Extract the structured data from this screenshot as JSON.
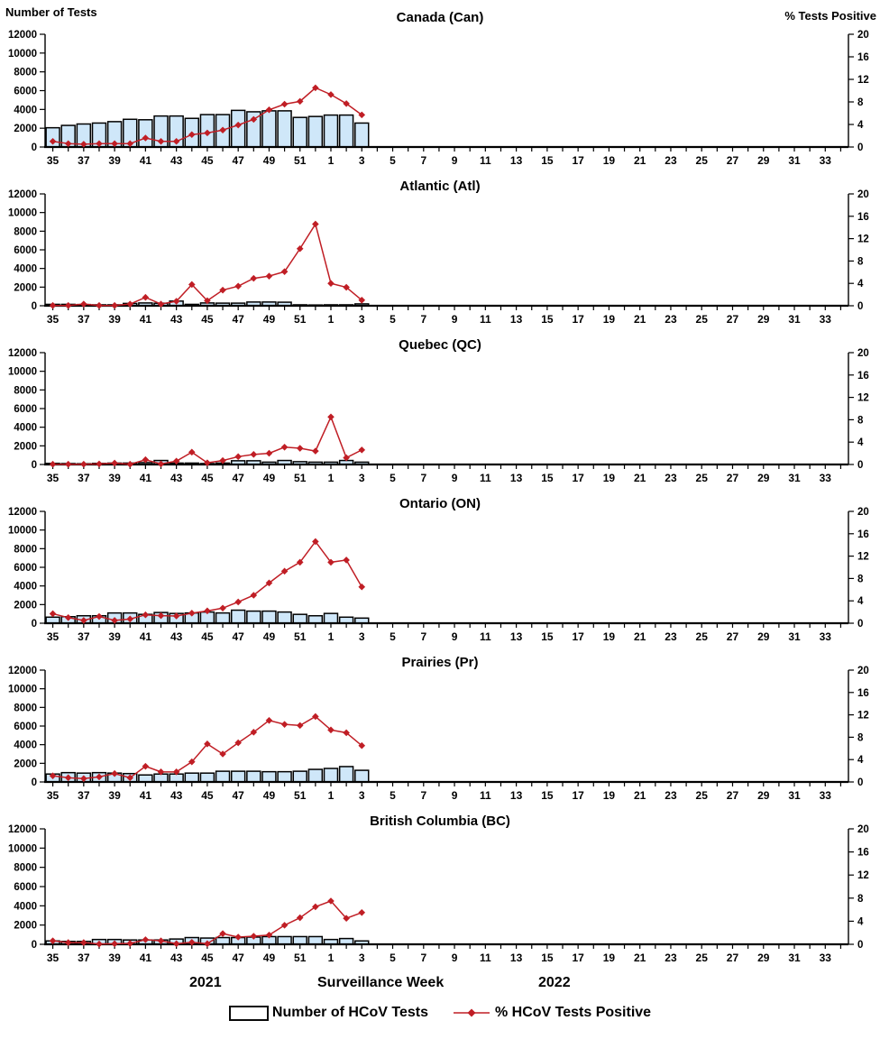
{
  "page": {
    "left_axis_header": "Number of Tests",
    "right_axis_header": "% Tests Positive",
    "x_axis_label": "Surveillance Week",
    "year_left": "2021",
    "year_right": "2022"
  },
  "legend": {
    "bars_label": "Number of HCoV Tests",
    "line_label": "% HCoV Tests Positive"
  },
  "colors": {
    "bar_fill": "#CFE7F9",
    "bar_stroke": "#000000",
    "line": "#C01E25",
    "axis": "#000000",
    "text": "#000000"
  },
  "chart_data": {
    "type": "bar+line dual-axis, 6 stacked panels",
    "left_axis": {
      "label": "Number of Tests",
      "ticks": [
        0,
        2000,
        4000,
        6000,
        8000,
        10000,
        12000
      ],
      "range": [
        0,
        12000
      ]
    },
    "right_axis": {
      "label": "% Tests Positive",
      "ticks": [
        0,
        4,
        8,
        12,
        16,
        20
      ],
      "range": [
        0,
        20
      ]
    },
    "x_categories": [
      "35",
      "36",
      "37",
      "38",
      "39",
      "40",
      "41",
      "42",
      "43",
      "44",
      "45",
      "46",
      "47",
      "48",
      "49",
      "50",
      "51",
      "52",
      "1",
      "2",
      "3",
      "4",
      "5",
      "6",
      "7",
      "8",
      "9",
      "10",
      "11",
      "12",
      "13",
      "14",
      "15",
      "16",
      "17",
      "18",
      "19",
      "20",
      "21",
      "22",
      "23",
      "24",
      "25",
      "26",
      "27",
      "28",
      "29",
      "30",
      "31",
      "32",
      "33",
      "34"
    ],
    "x_label_every_other_starting_at": "35",
    "data_weeks": [
      "35",
      "36",
      "37",
      "38",
      "39",
      "40",
      "41",
      "42",
      "43",
      "44",
      "45",
      "46",
      "47",
      "48",
      "49",
      "50",
      "51",
      "52",
      "1",
      "2",
      "3"
    ],
    "panels": [
      {
        "title": "Canada (Can)",
        "tests": [
          2050,
          2300,
          2450,
          2550,
          2700,
          2950,
          2900,
          3300,
          3300,
          3050,
          3450,
          3450,
          3900,
          3750,
          3850,
          3850,
          3150,
          3250,
          3400,
          3400,
          2550
        ],
        "pct_positive": [
          1.0,
          0.6,
          0.5,
          0.6,
          0.6,
          0.6,
          1.6,
          1.0,
          1.0,
          2.2,
          2.5,
          3.0,
          3.9,
          4.9,
          6.6,
          7.6,
          8.1,
          10.5,
          9.3,
          7.7,
          5.7
        ]
      },
      {
        "title": "Atlantic (Atl)",
        "tests": [
          150,
          150,
          130,
          100,
          100,
          250,
          300,
          270,
          500,
          150,
          300,
          280,
          280,
          400,
          400,
          380,
          100,
          80,
          100,
          100,
          200
        ],
        "pct_positive": [
          0.05,
          0.05,
          0.3,
          0.05,
          0.05,
          0.3,
          1.5,
          0.3,
          0.8,
          3.8,
          0.9,
          2.8,
          3.5,
          4.9,
          5.3,
          6.1,
          10.2,
          14.6,
          4.0,
          3.3,
          1.0
        ]
      },
      {
        "title": "Quebec (QC)",
        "tests": [
          120,
          100,
          80,
          120,
          150,
          150,
          200,
          430,
          150,
          150,
          100,
          150,
          400,
          400,
          250,
          430,
          300,
          250,
          250,
          430,
          250
        ],
        "pct_positive": [
          0.05,
          0.05,
          0.05,
          0.1,
          0.25,
          0.05,
          0.85,
          0.1,
          0.6,
          2.2,
          0.3,
          0.7,
          1.4,
          1.8,
          2.0,
          3.1,
          2.9,
          2.4,
          8.5,
          1.2,
          2.6
        ]
      },
      {
        "title": "Ontario (ON)",
        "tests": [
          650,
          700,
          800,
          800,
          1100,
          1100,
          950,
          1150,
          1050,
          1100,
          1200,
          1100,
          1400,
          1300,
          1300,
          1200,
          950,
          800,
          1050,
          650,
          550
        ],
        "pct_positive": [
          1.7,
          1.0,
          0.5,
          1.2,
          0.5,
          0.75,
          1.5,
          1.35,
          1.3,
          1.8,
          2.2,
          2.7,
          3.8,
          5.0,
          7.2,
          9.3,
          10.9,
          14.6,
          10.9,
          11.3,
          6.5
        ]
      },
      {
        "title": "Prairies (Pr)",
        "tests": [
          850,
          1000,
          950,
          1000,
          950,
          900,
          750,
          850,
          850,
          950,
          950,
          1150,
          1150,
          1150,
          1100,
          1100,
          1150,
          1350,
          1450,
          1650,
          1250
        ],
        "pct_positive": [
          1.1,
          0.75,
          0.6,
          0.9,
          1.5,
          0.75,
          2.8,
          1.8,
          1.8,
          3.6,
          6.8,
          5.0,
          7.0,
          8.9,
          11.0,
          10.3,
          10.1,
          11.7,
          9.3,
          8.8,
          6.5
        ]
      },
      {
        "title": "British Columbia (BC)",
        "tests": [
          350,
          300,
          300,
          500,
          500,
          450,
          450,
          450,
          550,
          700,
          650,
          700,
          700,
          750,
          800,
          800,
          800,
          800,
          500,
          600,
          350
        ],
        "pct_positive": [
          0.6,
          0.3,
          0.3,
          0.05,
          0.1,
          0.15,
          0.8,
          0.6,
          0.1,
          0.35,
          0.1,
          1.85,
          1.25,
          1.4,
          1.6,
          3.3,
          4.6,
          6.5,
          7.5,
          4.5,
          5.5
        ]
      }
    ],
    "grid": false,
    "legend_position": "bottom-center"
  }
}
